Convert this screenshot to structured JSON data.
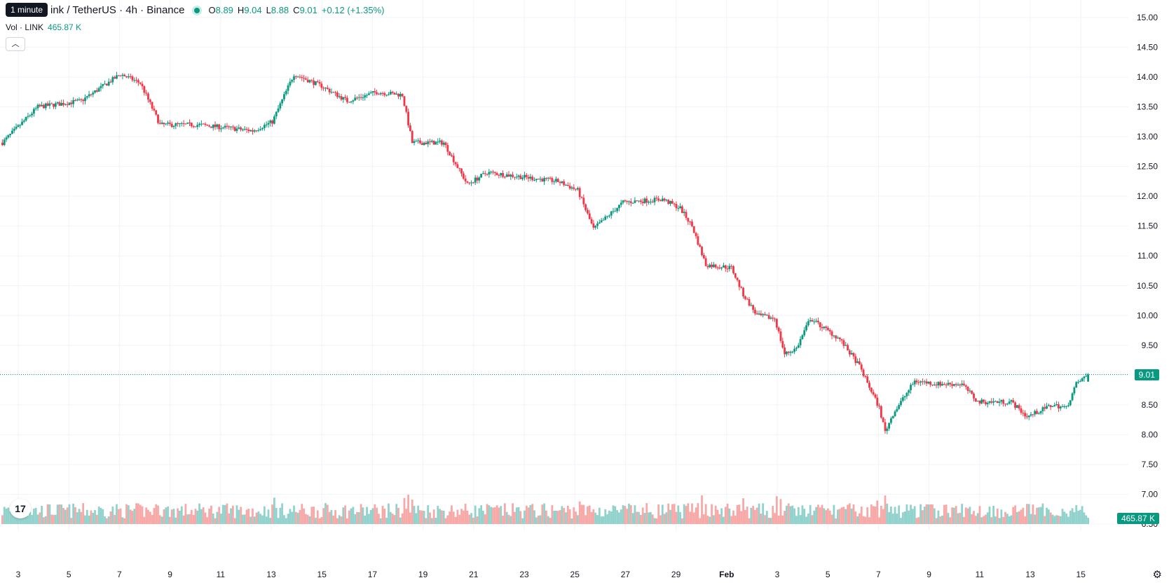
{
  "header": {
    "tooltip": "1 minute",
    "symbol_title": "ink / TetherUS · 4h · Binance",
    "open_key": "O",
    "open": "8.89",
    "high_key": "H",
    "high": "9.04",
    "low_key": "L",
    "low": "8.88",
    "close_key": "C",
    "close": "9.01",
    "change": "+0.12 (+1.35%)",
    "volume_label": "Vol · LINK",
    "volume_value": "465.87 K",
    "collapse_icon": "chevron-up-icon"
  },
  "price_badge": "9.01",
  "volume_badge": "465.87 K",
  "colors": {
    "up": "#089981",
    "down": "#f23645",
    "up_vol": "#92d2cc",
    "down_vol": "#f7a9a7",
    "grid": "#f0f3fa"
  },
  "chart_data": {
    "type": "candlestick",
    "symbol": "LINK/USDT",
    "interval": "4h",
    "exchange": "Binance",
    "ylim": [
      6.5,
      15.0
    ],
    "y_ticks": [
      "15.00",
      "14.50",
      "14.00",
      "13.50",
      "13.00",
      "12.50",
      "12.00",
      "11.50",
      "11.00",
      "10.50",
      "10.00",
      "9.50",
      "9.00",
      "8.50",
      "8.00",
      "7.50",
      "7.00",
      "6.50"
    ],
    "x_ticks": [
      "3",
      "5",
      "7",
      "9",
      "11",
      "13",
      "15",
      "17",
      "19",
      "21",
      "23",
      "25",
      "27",
      "29",
      "Feb",
      "3",
      "5",
      "7",
      "9",
      "11",
      "13",
      "15"
    ],
    "last_price": 9.01,
    "close_path": [
      [
        0,
        12.9
      ],
      [
        18,
        13.5
      ],
      [
        40,
        13.6
      ],
      [
        60,
        14.05
      ],
      [
        70,
        13.9
      ],
      [
        80,
        13.2
      ],
      [
        100,
        13.2
      ],
      [
        127,
        13.1
      ],
      [
        137,
        13.25
      ],
      [
        148,
        14.05
      ],
      [
        162,
        13.85
      ],
      [
        175,
        13.6
      ],
      [
        190,
        13.75
      ],
      [
        203,
        13.7
      ],
      [
        208,
        12.9
      ],
      [
        224,
        12.9
      ],
      [
        236,
        12.2
      ],
      [
        246,
        12.4
      ],
      [
        282,
        12.25
      ],
      [
        292,
        12.1
      ],
      [
        300,
        11.45
      ],
      [
        315,
        11.9
      ],
      [
        335,
        11.95
      ],
      [
        344,
        11.8
      ],
      [
        350,
        11.5
      ],
      [
        357,
        10.85
      ],
      [
        370,
        10.8
      ],
      [
        376,
        10.35
      ],
      [
        383,
        10.0
      ],
      [
        392,
        9.95
      ],
      [
        397,
        9.35
      ],
      [
        403,
        9.45
      ],
      [
        410,
        9.95
      ],
      [
        425,
        9.6
      ],
      [
        435,
        9.15
      ],
      [
        445,
        8.45
      ],
      [
        448,
        8.05
      ],
      [
        452,
        8.35
      ],
      [
        463,
        8.9
      ],
      [
        475,
        8.85
      ],
      [
        487,
        8.85
      ],
      [
        495,
        8.55
      ],
      [
        512,
        8.55
      ],
      [
        520,
        8.3
      ],
      [
        533,
        8.5
      ],
      [
        540,
        8.45
      ],
      [
        545,
        8.85
      ],
      [
        551,
        9.01
      ]
    ],
    "volume_max": "about 3 times the last bar (465.87 K)",
    "last_volume": "465.87 K"
  }
}
